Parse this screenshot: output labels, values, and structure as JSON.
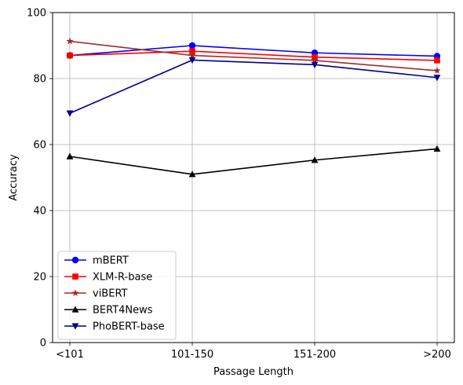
{
  "chart_data": {
    "type": "line",
    "categories": [
      "<101",
      "101-150",
      "151-200",
      ">200"
    ],
    "xlabel": "Passage Length",
    "ylabel": "Accuracy",
    "ylim": [
      0,
      100
    ],
    "yticks": [
      "0",
      "20",
      "40",
      "60",
      "80",
      "100"
    ],
    "grid": true,
    "legend_position": "lower-left",
    "series": [
      {
        "name": "mBERT",
        "color": "#0000ff",
        "marker": "circle",
        "values": [
          87.0,
          90.0,
          87.8,
          86.8
        ]
      },
      {
        "name": "XLM-R-base",
        "color": "#ff0000",
        "marker": "square",
        "values": [
          87.0,
          88.3,
          86.5,
          85.5
        ]
      },
      {
        "name": "viBERT",
        "color": "#a52a2a",
        "marker": "star",
        "values": [
          91.3,
          87.0,
          85.5,
          82.4
        ]
      },
      {
        "name": "BERT4News",
        "color": "#000000",
        "marker": "triangle-up",
        "values": [
          56.4,
          51.0,
          55.3,
          58.7
        ]
      },
      {
        "name": "PhoBERT-base",
        "color": "#00008b",
        "marker": "triangle-down",
        "values": [
          69.5,
          85.6,
          84.2,
          80.3
        ]
      }
    ]
  }
}
